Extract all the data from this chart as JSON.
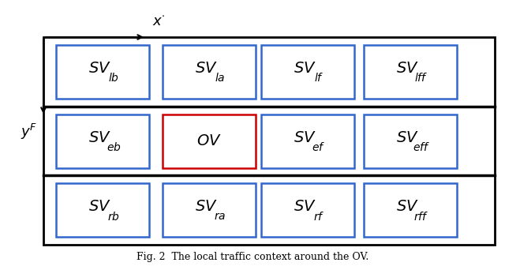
{
  "fig_width": 6.4,
  "fig_height": 3.42,
  "background_color": "#ffffff",
  "lane_line_color": "#000000",
  "box_blue_color": "#3366cc",
  "box_red_color": "#cc0000",
  "box_face_color": "#ffffff",
  "caption": "Fig. 2  The local traffic context around the OV.",
  "caption_fontsize": 9,
  "boxes": [
    {
      "col": 0,
      "row": 0,
      "label": "SV",
      "sub": "lb",
      "color": "blue"
    },
    {
      "col": 1,
      "row": 0,
      "label": "SV",
      "sub": "la",
      "color": "blue"
    },
    {
      "col": 2,
      "row": 0,
      "label": "SV",
      "sub": "lf",
      "color": "blue"
    },
    {
      "col": 3,
      "row": 0,
      "label": "SV",
      "sub": "lff",
      "color": "blue"
    },
    {
      "col": 0,
      "row": 1,
      "label": "SV",
      "sub": "eb",
      "color": "blue"
    },
    {
      "col": 1,
      "row": 1,
      "label": "OV",
      "sub": "",
      "color": "red"
    },
    {
      "col": 2,
      "row": 1,
      "label": "SV",
      "sub": "ef",
      "color": "blue"
    },
    {
      "col": 3,
      "row": 1,
      "label": "SV",
      "sub": "eff",
      "color": "blue"
    },
    {
      "col": 0,
      "row": 2,
      "label": "SV",
      "sub": "rb",
      "color": "blue"
    },
    {
      "col": 1,
      "row": 2,
      "label": "SV",
      "sub": "ra",
      "color": "blue"
    },
    {
      "col": 2,
      "row": 2,
      "label": "SV",
      "sub": "rf",
      "color": "blue"
    },
    {
      "col": 3,
      "row": 2,
      "label": "SV",
      "sub": "rff",
      "color": "blue"
    }
  ]
}
